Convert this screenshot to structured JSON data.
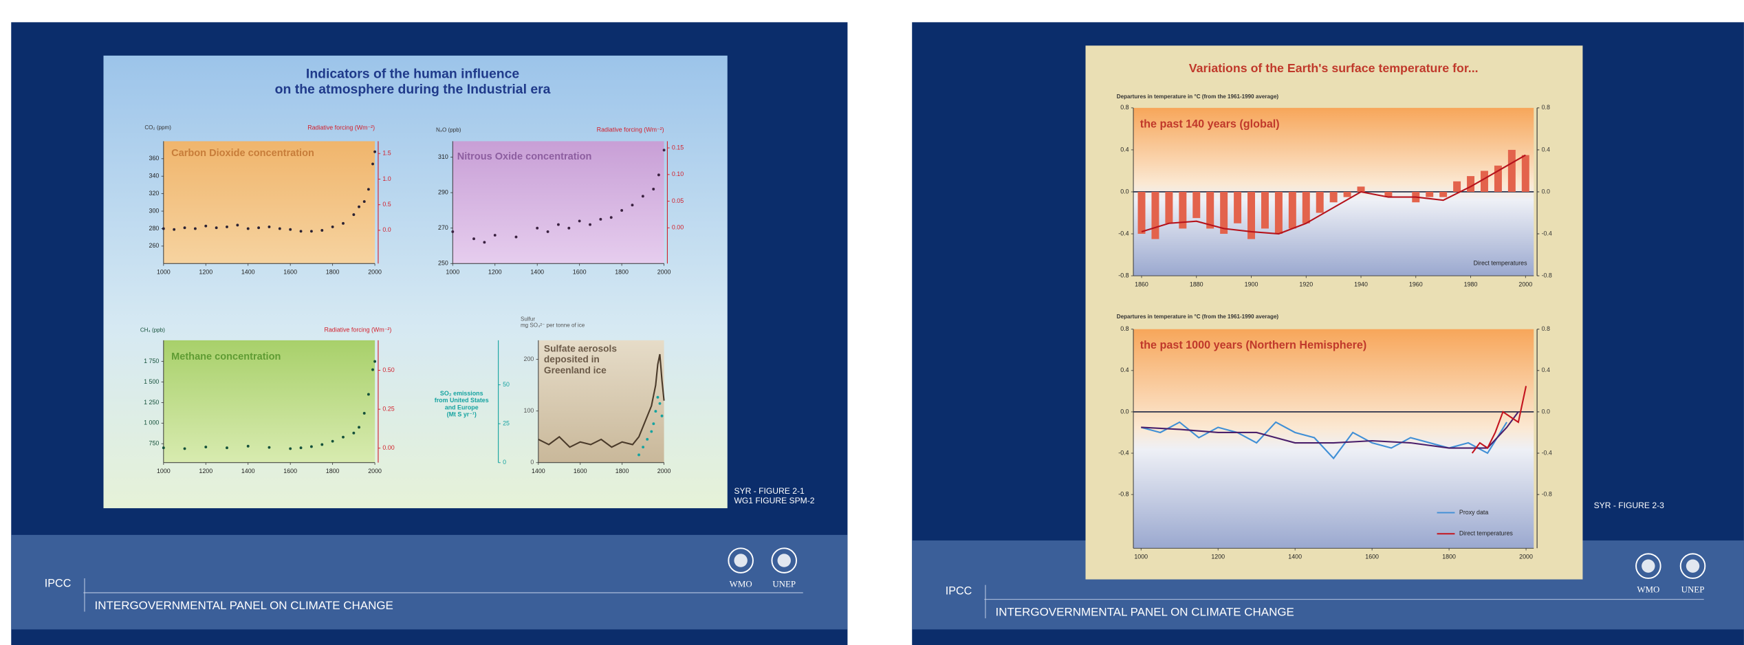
{
  "slides": [
    {
      "figure": {
        "title": [
          "Indicators of the human influence",
          "on the atmosphere during the Industrial era"
        ],
        "panels": [
          {
            "title": "Carbon Dioxide concentration",
            "ylabel": "CO₂ (ppm)",
            "y2label": "Radiative forcing (Wm⁻²)",
            "xlim": [
              1000,
              2000
            ],
            "xticks": [
              1000,
              1200,
              1400,
              1600,
              1800,
              2000
            ],
            "ylim": [
              240,
              380
            ],
            "yticks": [
              260,
              280,
              300,
              320,
              340,
              360
            ],
            "y2lim": [
              -0.65,
              1.74
            ],
            "y2ticks": [
              {
                "value": 0,
                "label": "0.0"
              },
              {
                "value": 0.5,
                "label": "0.5"
              },
              {
                "value": 1,
                "label": "1.0"
              },
              {
                "value": 1.5,
                "label": "1.5"
              }
            ],
            "series": [
              {
                "type": "scatter",
                "color": "#2b2233",
                "x": [
                  1000,
                  1050,
                  1100,
                  1150,
                  1200,
                  1250,
                  1300,
                  1350,
                  1400,
                  1450,
                  1500,
                  1550,
                  1600,
                  1650,
                  1700,
                  1750,
                  1800,
                  1850,
                  1900,
                  1925,
                  1950,
                  1970,
                  1990,
                  2000
                ],
                "values": [
                  280,
                  279,
                  281,
                  280,
                  283,
                  281,
                  282,
                  284,
                  280,
                  281,
                  282,
                  280,
                  279,
                  277,
                  277,
                  278,
                  282,
                  286,
                  296,
                  305,
                  311,
                  325,
                  354,
                  368
                ]
              }
            ]
          },
          {
            "title": "Nitrous Oxide concentration",
            "ylabel": "N₂O (ppb)",
            "y2label": "Radiative forcing (Wm⁻²)",
            "xlim": [
              1000,
              2000
            ],
            "xticks": [
              1000,
              1200,
              1400,
              1600,
              1800,
              2000
            ],
            "ylim": [
              250,
              319
            ],
            "yticks": [
              250,
              270,
              290,
              310
            ],
            "y2lim": [
              -0.067,
              0.1625
            ],
            "y2ticks": [
              {
                "value": 0,
                "label": "0.00"
              },
              {
                "value": 0.05,
                "label": "0.05"
              },
              {
                "value": 0.1,
                "label": "0.10"
              },
              {
                "value": 0.15,
                "label": "0.15"
              }
            ],
            "series": [
              {
                "type": "scatter",
                "color": "#3a2140",
                "x": [
                  1000,
                  1100,
                  1150,
                  1200,
                  1300,
                  1400,
                  1450,
                  1500,
                  1550,
                  1600,
                  1650,
                  1700,
                  1750,
                  1800,
                  1850,
                  1900,
                  1950,
                  1975,
                  2000
                ],
                "values": [
                  268,
                  264,
                  262,
                  266,
                  265,
                  270,
                  268,
                  272,
                  270,
                  274,
                  272,
                  275,
                  276,
                  280,
                  283,
                  288,
                  292,
                  300,
                  314
                ]
              }
            ]
          },
          {
            "title": "Methane concentration",
            "ylabel": "CH₄ (ppb)",
            "y2label": "Radiative forcing (Wm⁻²)",
            "xlim": [
              1000,
              2000
            ],
            "xticks": [
              1000,
              1200,
              1400,
              1600,
              1800,
              2000
            ],
            "ylim": [
              520,
              2007
            ],
            "yticks": [
              750,
              {
                "value": 1000,
                "label": "1 000"
              },
              {
                "value": 1250,
                "label": "1 250"
              },
              {
                "value": 1500,
                "label": "1 500"
              },
              {
                "value": 1750,
                "label": "1 750"
              }
            ],
            "y2lim": [
              -0.093,
              0.693
            ],
            "y2ticks": [
              {
                "value": 0,
                "label": "0.00"
              },
              {
                "value": 0.25,
                "label": "0.25"
              },
              {
                "value": 0.5,
                "label": "0.50"
              }
            ],
            "series": [
              {
                "type": "scatter",
                "color": "#14503a",
                "x": [
                  1000,
                  1100,
                  1200,
                  1300,
                  1400,
                  1500,
                  1600,
                  1650,
                  1700,
                  1750,
                  1800,
                  1850,
                  1900,
                  1925,
                  1950,
                  1970,
                  1990,
                  2000
                ],
                "values": [
                  700,
                  690,
                  710,
                  700,
                  720,
                  705,
                  690,
                  700,
                  715,
                  740,
                  780,
                  830,
                  880,
                  950,
                  1120,
                  1350,
                  1650,
                  1750
                ]
              }
            ]
          },
          {
            "title": [
              "Sulfate aerosols",
              "deposited in",
              "Greenland ice"
            ],
            "ylabel": [
              "Sulfur",
              "mg SO₄²⁻ per tonne of ice"
            ],
            "y2label": [
              "SO₂ emissions",
              "from United States",
              "and Europe",
              "(Mt S yr⁻¹)"
            ],
            "xlim": [
              1400,
              2000
            ],
            "xticks": [
              1400,
              1600,
              1800,
              2000
            ],
            "ylim": [
              0,
              237
            ],
            "yticks": [
              0,
              100,
              200
            ],
            "y2lim": [
              0,
              78.6
            ],
            "y2ticks": [
              0,
              25,
              50
            ],
            "series": [
              {
                "type": "line",
                "color": "#4a3a2a",
                "x": [
                  1400,
                  1450,
                  1500,
                  1550,
                  1600,
                  1650,
                  1700,
                  1750,
                  1800,
                  1850,
                  1880,
                  1900,
                  1920,
                  1940,
                  1960,
                  1970,
                  1980,
                  1990,
                  2000
                ],
                "values": [
                  45,
                  35,
                  50,
                  30,
                  40,
                  35,
                  45,
                  30,
                  40,
                  35,
                  50,
                  70,
                  90,
                  110,
                  150,
                  190,
                  210,
                  160,
                  120
                ]
              },
              {
                "type": "scatter",
                "axis": "y2",
                "color": "#16a3a0",
                "x": [
                  1880,
                  1900,
                  1920,
                  1940,
                  1950,
                  1960,
                  1970,
                  1980,
                  1990
                ],
                "values": [
                  5,
                  10,
                  15,
                  20,
                  25,
                  33,
                  42,
                  38,
                  30
                ]
              }
            ]
          }
        ]
      },
      "caption": [
        "SYR - FIGURE 2-1",
        "WG1 FIGURE SPM-2"
      ],
      "footer": {
        "org": "IPCC",
        "name": "INTERGOVERNMENTAL PANEL ON CLIMATE CHANGE",
        "logos": [
          "WMO",
          "UNEP"
        ]
      }
    },
    {
      "figure": {
        "title": [
          "Variations of the Earth's surface temperature for..."
        ],
        "panels": [
          {
            "title": "the past 140 years (global)",
            "ylabel": "Departures in temperature in °C (from the 1961-1990 average)",
            "annotation": "Direct temperatures",
            "xlim": [
              1857,
              2003
            ],
            "xticks": [
              1860,
              1880,
              1900,
              1920,
              1940,
              1960,
              1980,
              2000
            ],
            "ylim": [
              -0.8,
              0.8
            ],
            "yticks": [
              -0.8,
              -0.4,
              {
                "value": 0,
                "label": "0.0"
              },
              0.4,
              0.8
            ],
            "y2lim": [
              -0.8,
              0.8
            ],
            "y2ticks": [
              -0.8,
              -0.4,
              {
                "value": 0,
                "label": "0.0"
              },
              0.4,
              0.8
            ],
            "series": [
              {
                "type": "bar",
                "color": "#e3634c",
                "x": [
                  1860,
                  1865,
                  1870,
                  1875,
                  1880,
                  1885,
                  1890,
                  1895,
                  1900,
                  1905,
                  1910,
                  1915,
                  1920,
                  1925,
                  1930,
                  1935,
                  1940,
                  1945,
                  1950,
                  1955,
                  1960,
                  1965,
                  1970,
                  1975,
                  1980,
                  1985,
                  1990,
                  1995,
                  2000
                ],
                "values": [
                  -0.4,
                  -0.45,
                  -0.3,
                  -0.35,
                  -0.25,
                  -0.35,
                  -0.4,
                  -0.3,
                  -0.45,
                  -0.35,
                  -0.4,
                  -0.35,
                  -0.3,
                  -0.2,
                  -0.1,
                  -0.05,
                  0.05,
                  0,
                  -0.05,
                  0,
                  -0.1,
                  -0.05,
                  -0.05,
                  0.1,
                  0.15,
                  0.2,
                  0.25,
                  0.4,
                  0.35
                ]
              },
              {
                "type": "line",
                "color": "#b5121b",
                "x": [
                  1860,
                  1870,
                  1880,
                  1890,
                  1900,
                  1910,
                  1920,
                  1930,
                  1940,
                  1950,
                  1960,
                  1970,
                  1980,
                  1990,
                  2000
                ],
                "values": [
                  -0.38,
                  -0.3,
                  -0.28,
                  -0.35,
                  -0.38,
                  -0.4,
                  -0.3,
                  -0.15,
                  0,
                  -0.05,
                  -0.05,
                  -0.08,
                  0.05,
                  0.2,
                  0.35
                ]
              }
            ]
          },
          {
            "title": "the past 1000 years (Northern Hemisphere)",
            "ylabel": "Departures in temperature in °C (from the 1961-1990 average)",
            "xlim": [
              980,
              2020
            ],
            "xticks": [
              1000,
              1200,
              1400,
              1600,
              1800,
              2000
            ],
            "ylim": [
              -1.32,
              0.8
            ],
            "yticks": [
              -0.8,
              -0.4,
              {
                "value": 0,
                "label": "0.0"
              },
              0.4,
              0.8
            ],
            "y2lim": [
              -1.32,
              0.8
            ],
            "y2ticks": [
              -0.8,
              -0.4,
              {
                "value": 0,
                "label": "0.0"
              },
              0.4,
              0.8
            ],
            "series": [
              {
                "type": "line",
                "name": "Proxy data",
                "color": "#3f8fd6",
                "x": [
                  1000,
                  1050,
                  1100,
                  1150,
                  1200,
                  1250,
                  1300,
                  1350,
                  1400,
                  1450,
                  1500,
                  1550,
                  1600,
                  1650,
                  1700,
                  1750,
                  1800,
                  1850,
                  1900,
                  1950
                ],
                "values": [
                  -0.15,
                  -0.2,
                  -0.1,
                  -0.25,
                  -0.15,
                  -0.2,
                  -0.3,
                  -0.1,
                  -0.2,
                  -0.25,
                  -0.45,
                  -0.2,
                  -0.3,
                  -0.35,
                  -0.25,
                  -0.3,
                  -0.35,
                  -0.3,
                  -0.4,
                  -0.1
                ]
              },
              {
                "type": "line",
                "color": "#4a1f6b",
                "x": [
                  1000,
                  1100,
                  1200,
                  1300,
                  1400,
                  1500,
                  1600,
                  1700,
                  1800,
                  1900,
                  1950,
                  1980
                ],
                "values": [
                  -0.15,
                  -0.17,
                  -0.2,
                  -0.2,
                  -0.3,
                  -0.3,
                  -0.28,
                  -0.3,
                  -0.35,
                  -0.35,
                  -0.15,
                  0
                ]
              },
              {
                "type": "line",
                "name": "Direct temperatures",
                "color": "#c3141e",
                "x": [
                  1860,
                  1880,
                  1900,
                  1920,
                  1940,
                  1960,
                  1980,
                  2000
                ],
                "values": [
                  -0.4,
                  -0.3,
                  -0.35,
                  -0.2,
                  0,
                  -0.05,
                  -0.1,
                  0.25
                ]
              }
            ]
          }
        ]
      },
      "caption": [
        "SYR - FIGURE 2-3"
      ],
      "footer": {
        "org": "IPCC",
        "name": "INTERGOVERNMENTAL PANEL ON CLIMATE CHANGE",
        "logos": [
          "WMO",
          "UNEP"
        ]
      }
    }
  ]
}
